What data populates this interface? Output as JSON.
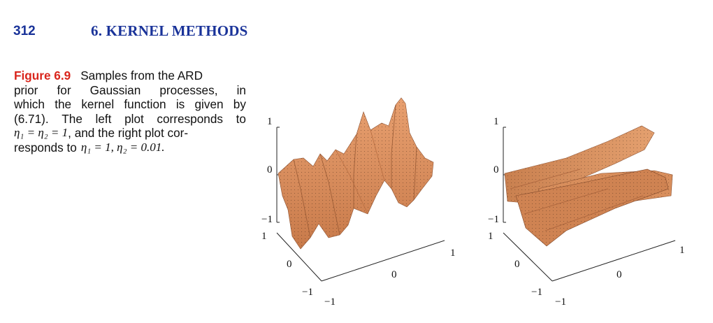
{
  "header": {
    "page_number": "312",
    "chapter_title": "6. KERNEL METHODS"
  },
  "caption": {
    "label": "Figure 6.9",
    "line1_text": "Samples from the ARD",
    "line2": [
      "prior",
      "for",
      "Gaussian",
      "processes,",
      "in"
    ],
    "line3": [
      "which",
      "the",
      "kernel",
      "function",
      "is",
      "given",
      "by"
    ],
    "line4": [
      "(6.71).",
      "The",
      "left",
      "plot",
      "corresponds",
      "to"
    ],
    "line5_math": "η₁ = η₂ = 1",
    "line5_text": ", and the right plot cor-",
    "line6_text": "responds to ",
    "line6_math": "η₁ = 1, η₂ = 0.01."
  },
  "plots": [
    {
      "name": "left",
      "z_ticks": [
        "1",
        "0",
        "−1"
      ],
      "x_ticks": [
        "1",
        "0",
        "−1"
      ],
      "y_ticks": [
        "−1",
        "0",
        "1"
      ],
      "surface_color": "#d98a5a"
    },
    {
      "name": "right",
      "z_ticks": [
        "1",
        "0",
        "−1"
      ],
      "x_ticks": [
        "1",
        "0",
        "−1"
      ],
      "y_ticks": [
        "−1",
        "0",
        "1"
      ],
      "surface_color": "#d98a5a"
    }
  ],
  "colors": {
    "accent": "#1a3399",
    "figure_label": "#d9251c",
    "surface": "#d98a5a"
  }
}
